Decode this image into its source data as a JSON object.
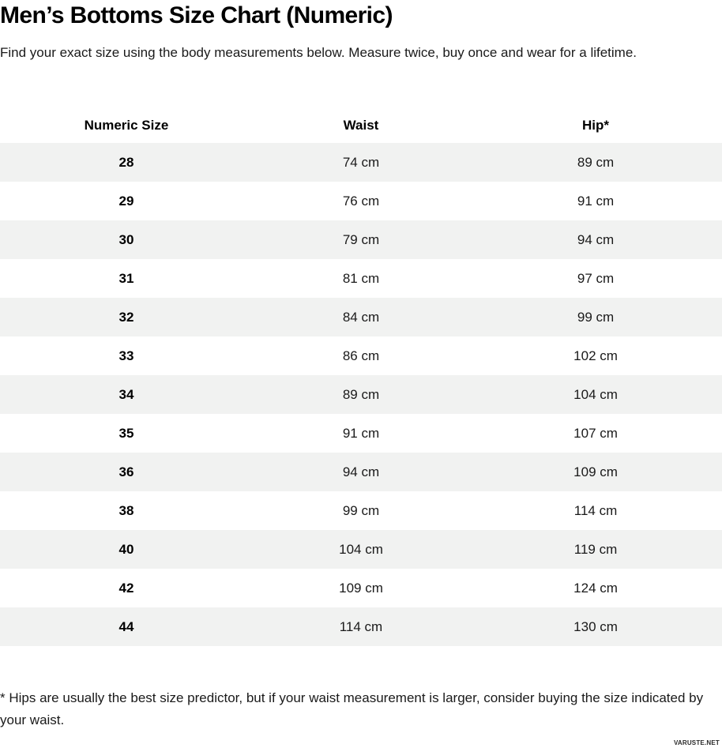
{
  "page": {
    "title": "Men’s Bottoms Size Chart (Numeric)",
    "subtitle": "Find your exact size using the body measurements below. Measure twice, buy once and wear for a lifetime.",
    "footnote": "* Hips are usually the best size predictor, but if your waist measurement is larger, consider buying the size indicated by your waist.",
    "watermark": "VARUSTE.NET"
  },
  "table": {
    "columns": [
      "Numeric Size",
      "Waist",
      "Hip*"
    ],
    "rows": [
      [
        "28",
        "74 cm",
        "89 cm"
      ],
      [
        "29",
        "76 cm",
        "91 cm"
      ],
      [
        "30",
        "79 cm",
        "94 cm"
      ],
      [
        "31",
        "81 cm",
        "97 cm"
      ],
      [
        "32",
        "84 cm",
        "99 cm"
      ],
      [
        "33",
        "86 cm",
        "102 cm"
      ],
      [
        "34",
        "89 cm",
        "104 cm"
      ],
      [
        "35",
        "91 cm",
        "107 cm"
      ],
      [
        "36",
        "94 cm",
        "109 cm"
      ],
      [
        "38",
        "99 cm",
        "114 cm"
      ],
      [
        "40",
        "104 cm",
        "119 cm"
      ],
      [
        "42",
        "109 cm",
        "124 cm"
      ],
      [
        "44",
        "114 cm",
        "130 cm"
      ]
    ]
  },
  "colors": {
    "stripe": "#f1f2f1",
    "text": "#111111",
    "background": "#ffffff"
  }
}
